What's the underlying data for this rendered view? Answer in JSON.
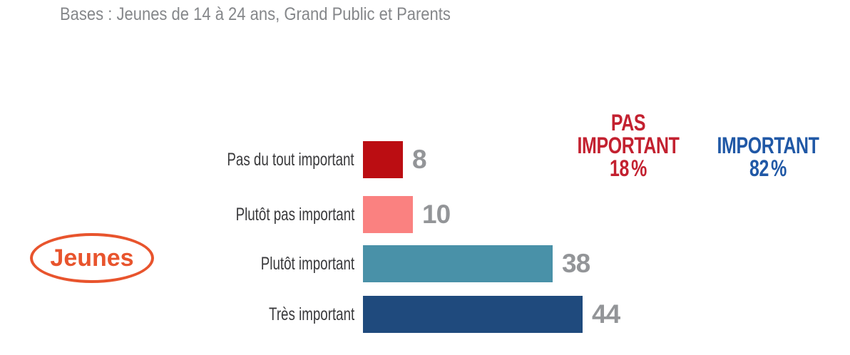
{
  "header": {
    "base_note": "Bases : Jeunes de 14 à 24 ans, Grand Public et Parents"
  },
  "group_badge": {
    "label": "Jeunes",
    "color": "#e8542d"
  },
  "colors": {
    "title_gray": "#85878a",
    "category_label": "#3a3a3c",
    "value_gray": "#939598",
    "summary_red": "#c32130",
    "summary_blue": "#2058a6",
    "badge_orange": "#e8542d"
  },
  "chart_data": {
    "type": "bar",
    "orientation": "horizontal",
    "title": "Bases : Jeunes de 14 à 24 ans, Grand Public et Parents",
    "categories": [
      "Pas du tout important",
      "Plutôt pas important",
      "Plutôt important",
      "Très important"
    ],
    "values": [
      8,
      10,
      38,
      44
    ],
    "bar_colors": [
      "#bb0d12",
      "#fa8180",
      "#4991a8",
      "#1f4a7d"
    ],
    "xlim": [
      0,
      50
    ],
    "grid": false,
    "legend": "none",
    "group_label": "Jeunes",
    "summaries": [
      {
        "lines": [
          "PAS",
          "IMPORTANT"
        ],
        "value": "18",
        "unit": "%",
        "color": "#c32130"
      },
      {
        "lines": [
          "IMPORTANT"
        ],
        "value": "82",
        "unit": "%",
        "color": "#2058a6"
      }
    ]
  }
}
